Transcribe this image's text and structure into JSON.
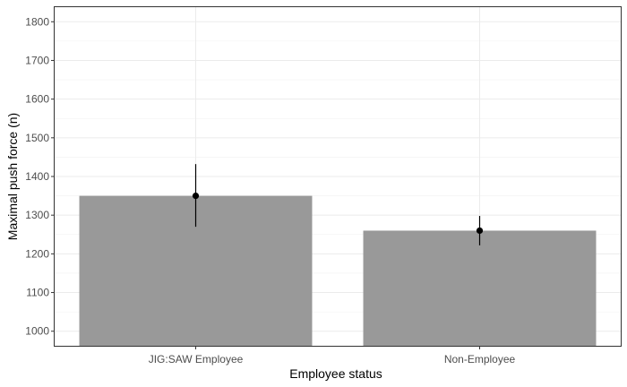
{
  "chart_data": {
    "type": "bar",
    "title": "",
    "xlabel": "Employee status",
    "ylabel": "Maximal push force (n)",
    "categories": [
      "JIG:SAW Employee",
      "Non-Employee"
    ],
    "values": [
      1350,
      1260
    ],
    "error_low": [
      1270,
      1222
    ],
    "error_high": [
      1432,
      1298
    ],
    "ylim": [
      960,
      1840
    ],
    "yticks": [
      "1000",
      "1100",
      "1200",
      "1300",
      "1400",
      "1500",
      "1600",
      "1700",
      "1800"
    ],
    "ytick_values": [
      1000,
      1100,
      1200,
      1300,
      1400,
      1500,
      1600,
      1700,
      1800
    ],
    "grid": true,
    "legend": "none",
    "colors": {
      "bar": "#999999",
      "error": "#000000",
      "grid": "#ebebeb",
      "panel_border": "#333333"
    }
  }
}
